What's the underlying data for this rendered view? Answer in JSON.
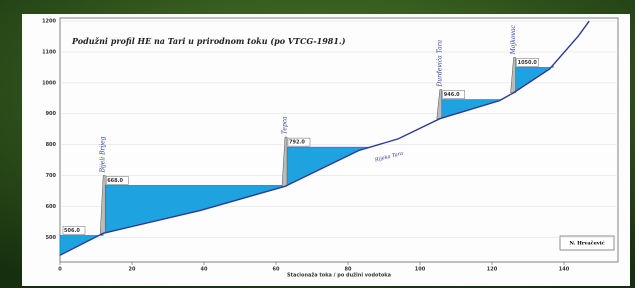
{
  "chart_data": {
    "type": "profile",
    "title": "Podužni profil HE na Tari u prirodnom toku (po VTCG-1981.)",
    "x_label": "Stacionaža toka / po dužini vodotoka",
    "river_label": "Rijeka Tara",
    "author": "N. Hrvačević",
    "xlim": [
      0,
      155
    ],
    "xticks": [
      0,
      20,
      40,
      60,
      80,
      100,
      120,
      140
    ],
    "ylim": [
      420,
      1210
    ],
    "yticks": [
      500,
      600,
      700,
      800,
      900,
      1000,
      1100,
      1200
    ],
    "bed": {
      "x": [
        0,
        12,
        39,
        62.5,
        83,
        94,
        105.5,
        122,
        126,
        136,
        144,
        147
      ],
      "y": [
        442,
        513,
        587,
        665,
        781,
        819,
        884,
        942,
        968,
        1045,
        1152,
        1200
      ],
      "color": "#2b3a9a"
    },
    "water_color": "#1fa3e0",
    "reservoirs": [
      {
        "start": 0,
        "end": 12,
        "level": 506,
        "level_label": "506.0"
      },
      {
        "dam": 12,
        "end": 62.5,
        "level": 668,
        "level_label": "668.0",
        "name": "Bijeli Brijeg"
      },
      {
        "dam": 62.5,
        "end": 86,
        "level": 792,
        "level_label": "792.0",
        "name": "Tepca"
      },
      {
        "dam": 105.5,
        "end": 123,
        "level": 946,
        "level_label": "946.0",
        "name": "Đurđevića Tara"
      },
      {
        "dam": 126,
        "end": 137,
        "level": 1050,
        "level_label": "1050.0",
        "name": "Mojkovac"
      }
    ]
  }
}
